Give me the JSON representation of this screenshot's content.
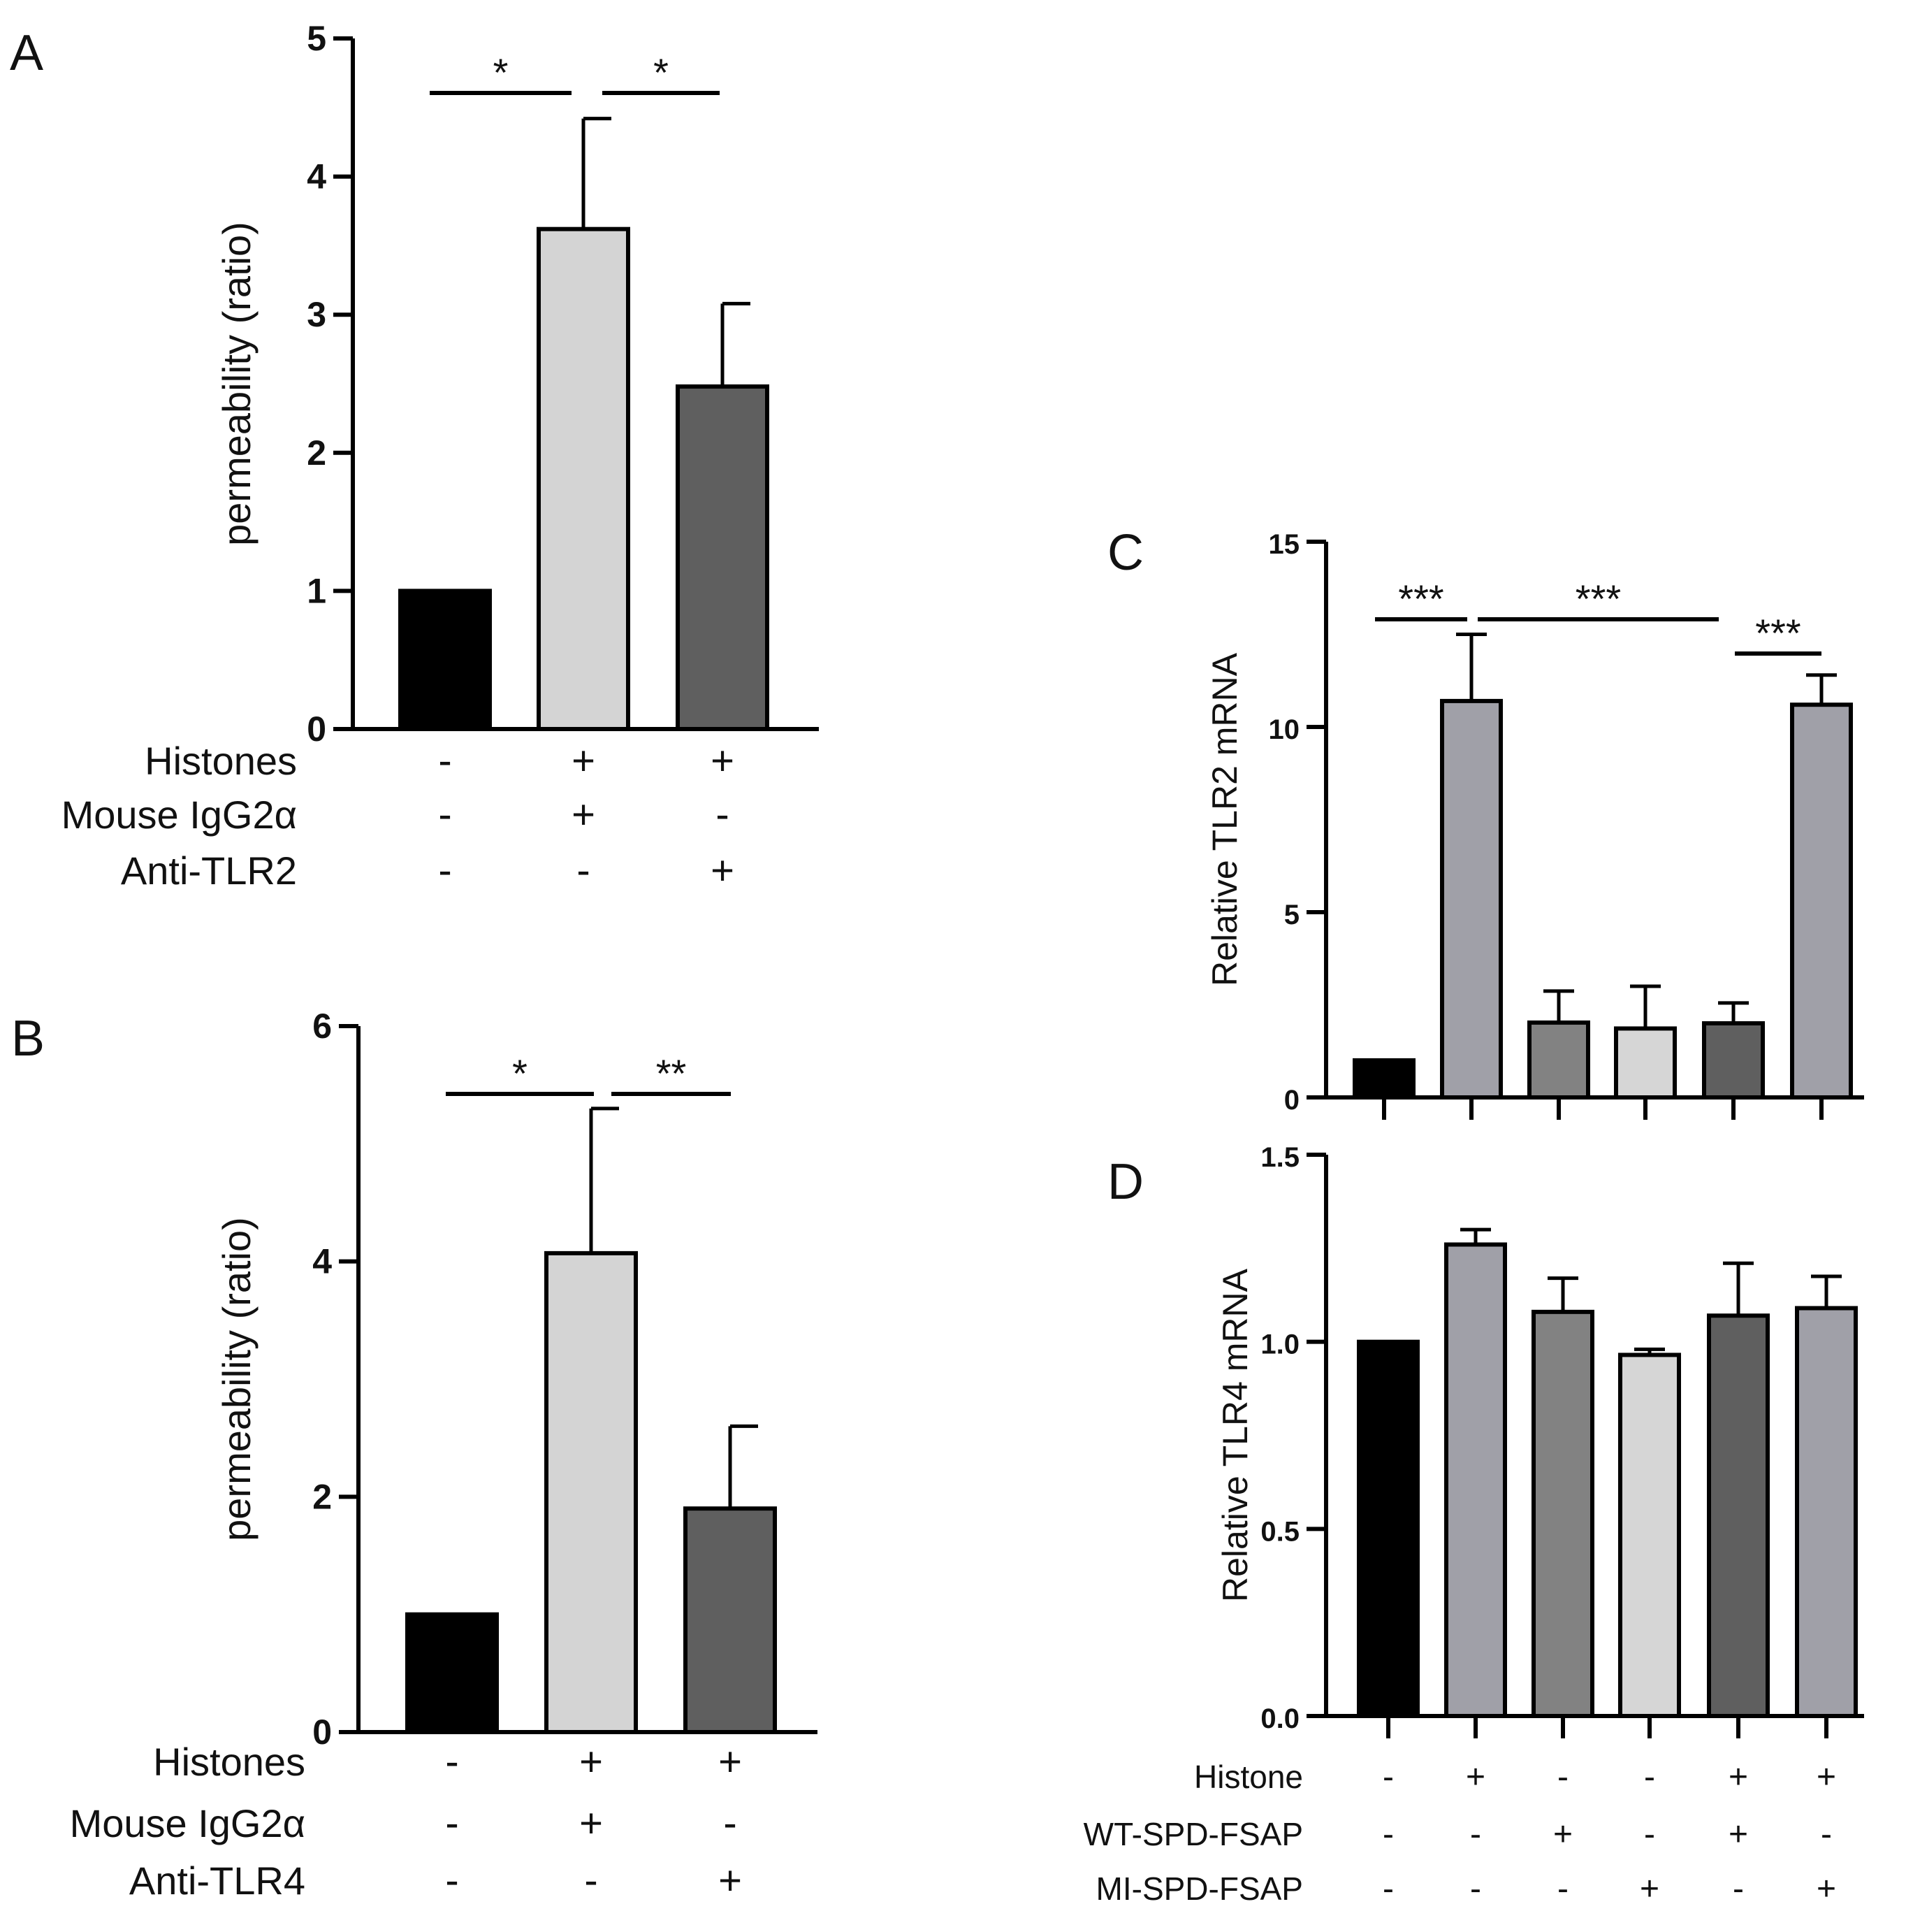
{
  "figure": {
    "panels": {
      "A": {
        "letter": "A"
      },
      "B": {
        "letter": "B"
      },
      "C": {
        "letter": "C"
      },
      "D": {
        "letter": "D"
      }
    }
  },
  "chart_data": [
    {
      "id": "A",
      "type": "bar",
      "title": "",
      "xlabel": "",
      "ylabel": "permeability (ratio)",
      "ylim": [
        0,
        5
      ],
      "yticks": [
        "0",
        "1",
        "2",
        "3",
        "4",
        "5"
      ],
      "grid": false,
      "bars": [
        {
          "value": 1.0,
          "error": 0,
          "color": "#000000"
        },
        {
          "value": 3.62,
          "error": 0.8,
          "color": "#d4d4d4"
        },
        {
          "value": 2.48,
          "error": 0.6,
          "color": "#5f5f5f"
        }
      ],
      "condition_rows": [
        {
          "label": "Histones",
          "signs": [
            "-",
            "+",
            "+"
          ]
        },
        {
          "label": "Mouse IgG2α",
          "signs": [
            "-",
            "+",
            "-"
          ]
        },
        {
          "label": "Anti-TLR2",
          "signs": [
            "-",
            "-",
            "+"
          ]
        }
      ],
      "significance": [
        {
          "from": 0,
          "to": 1,
          "label": "*"
        },
        {
          "from": 1,
          "to": 2,
          "label": "*"
        }
      ]
    },
    {
      "id": "B",
      "type": "bar",
      "title": "",
      "xlabel": "",
      "ylabel": "permeability (ratio)",
      "ylim": [
        0,
        6
      ],
      "yticks": [
        "0",
        "2",
        "4",
        "6"
      ],
      "grid": false,
      "bars": [
        {
          "value": 1.0,
          "error": 0,
          "color": "#000000"
        },
        {
          "value": 4.07,
          "error": 1.23,
          "color": "#d4d4d4"
        },
        {
          "value": 1.9,
          "error": 0.7,
          "color": "#5f5f5f"
        }
      ],
      "condition_rows": [
        {
          "label": "Histones",
          "signs": [
            "-",
            "+",
            "+"
          ]
        },
        {
          "label": "Mouse IgG2α",
          "signs": [
            "-",
            "+",
            "-"
          ]
        },
        {
          "label": "Anti-TLR4",
          "signs": [
            "-",
            "-",
            "+"
          ]
        }
      ],
      "significance": [
        {
          "from": 0,
          "to": 1,
          "label": "*"
        },
        {
          "from": 1,
          "to": 2,
          "label": "**"
        }
      ]
    },
    {
      "id": "C",
      "type": "bar",
      "title": "",
      "xlabel": "",
      "ylabel": "Relative TLR2 mRNA",
      "ylim": [
        0,
        15
      ],
      "yticks": [
        "0",
        "5",
        "10",
        "15"
      ],
      "grid": false,
      "bars": [
        {
          "value": 1.0,
          "error": 0,
          "color": "#000000"
        },
        {
          "value": 10.7,
          "error": 1.8,
          "color": "#a0a0a8"
        },
        {
          "value": 2.02,
          "error": 0.85,
          "color": "#828282"
        },
        {
          "value": 1.86,
          "error": 1.14,
          "color": "#d6d6d6"
        },
        {
          "value": 2.0,
          "error": 0.55,
          "color": "#5f5f5f"
        },
        {
          "value": 10.6,
          "error": 0.8,
          "color": "#a0a0a8"
        }
      ],
      "significance": [
        {
          "from": 0,
          "to": 1,
          "label": "***"
        },
        {
          "from": 1,
          "to": 4,
          "label": "***"
        },
        {
          "from": 4,
          "to": 5,
          "label": "***"
        }
      ]
    },
    {
      "id": "D",
      "type": "bar",
      "title": "",
      "xlabel": "",
      "ylabel": "Relative TLR4 mRNA",
      "ylim": [
        0,
        1.5
      ],
      "yticks": [
        "0.0",
        "0.5",
        "1.0",
        "1.5"
      ],
      "grid": false,
      "bars": [
        {
          "value": 1.0,
          "error": 0,
          "color": "#000000"
        },
        {
          "value": 1.26,
          "error": 0.04,
          "color": "#a0a0a8"
        },
        {
          "value": 1.08,
          "error": 0.09,
          "color": "#828282"
        },
        {
          "value": 0.965,
          "error": 0.015,
          "color": "#d6d6d6"
        },
        {
          "value": 1.07,
          "error": 0.14,
          "color": "#5f5f5f"
        },
        {
          "value": 1.09,
          "error": 0.085,
          "color": "#a0a0a8"
        }
      ],
      "condition_rows": [
        {
          "label": "Histone",
          "signs": [
            "-",
            "+",
            "-",
            "-",
            "+",
            "+"
          ]
        },
        {
          "label": "WT-SPD-FSAP",
          "signs": [
            "-",
            "-",
            "+",
            "-",
            "+",
            "-"
          ]
        },
        {
          "label": "MI-SPD-FSAP",
          "signs": [
            "-",
            "-",
            "-",
            "+",
            "-",
            "+"
          ]
        }
      ],
      "significance": []
    }
  ]
}
